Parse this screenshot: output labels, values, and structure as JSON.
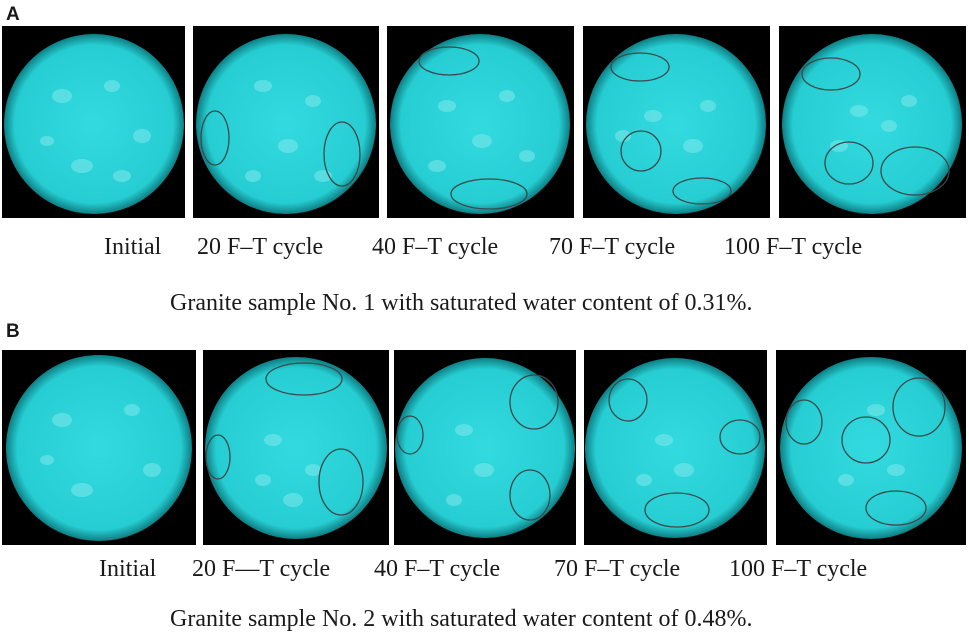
{
  "panels": [
    {
      "letter": "A",
      "labels": [
        "Initial",
        "20 F–T cycle",
        "40 F–T cycle",
        "70 F–T cycle",
        "100 F–T cycle"
      ],
      "caption": "Granite sample No. 1 with saturated water content of 0.31%."
    },
    {
      "letter": "B",
      "labels": [
        "Initial",
        "20 F—T cycle",
        "40 F–T cycle",
        "70 F–T cycle",
        "100 F–T cycle"
      ],
      "caption": "Granite sample No. 2 with saturated water content of 0.48%."
    }
  ],
  "colors": {
    "sample_fill": "#2ad4d8",
    "sample_highlight": "#7fe9ec",
    "background_tile": "#000000",
    "marker_outline": "#3a4a4a"
  }
}
